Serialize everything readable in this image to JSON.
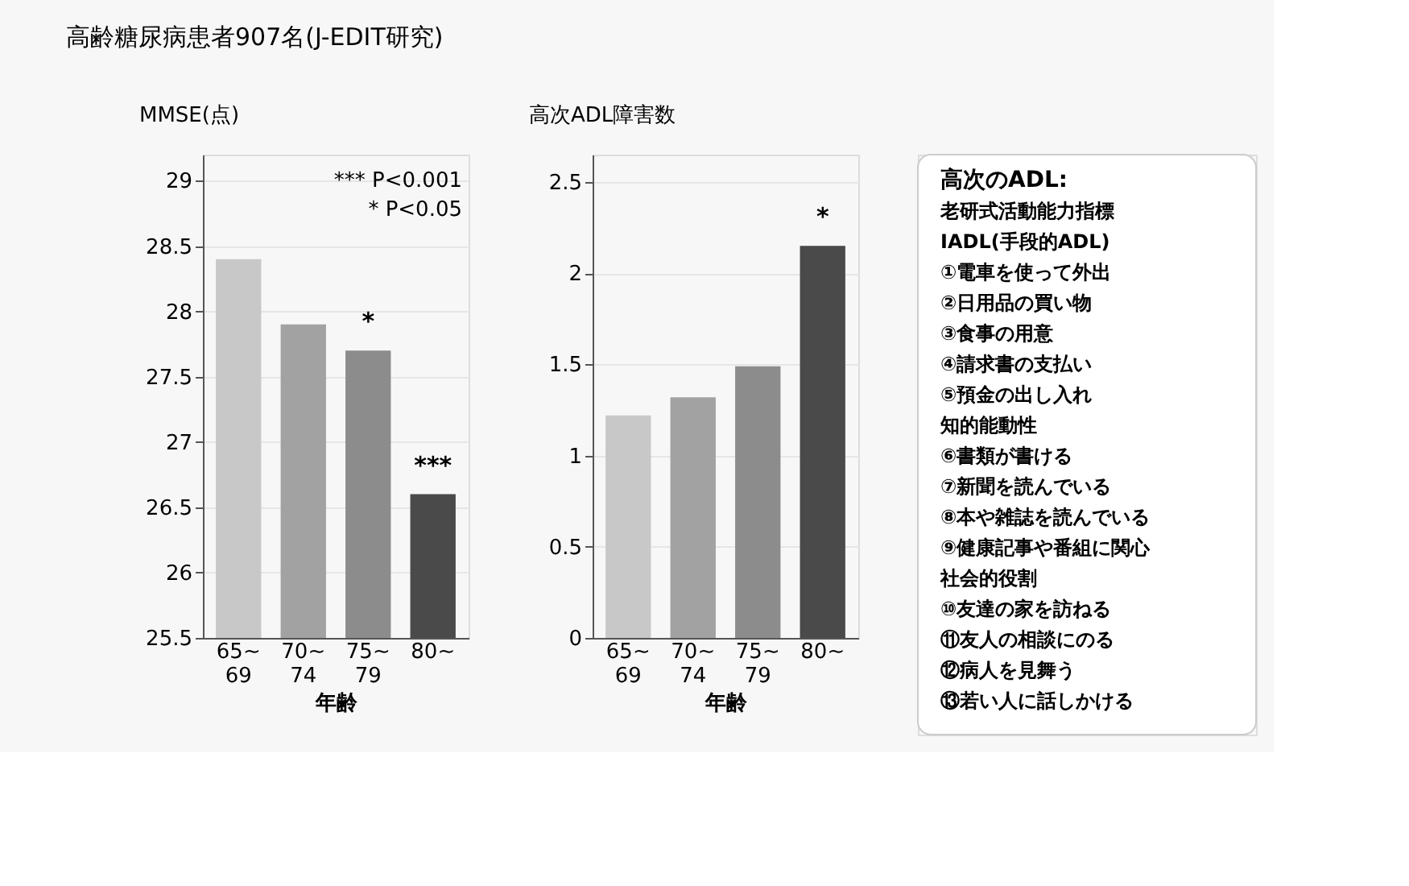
{
  "chart_data": [
    {
      "type": "bar",
      "title": "高齢糖尿病患者907名(J-EDIT研究)",
      "ylabel": "MMSE(点)",
      "xlabel": "年齢",
      "categories": [
        "65~\n69",
        "70~\n74",
        "75~\n79",
        "80~"
      ],
      "values": [
        28.4,
        27.9,
        27.7,
        26.6
      ],
      "colors": [
        "#c8c8c8",
        "#a2a2a2",
        "#8c8c8c",
        "#4a4a4a"
      ],
      "ylim": [
        25.5,
        29.2
      ],
      "yticks": [
        25.5,
        26,
        26.5,
        27,
        27.5,
        28,
        28.5,
        29
      ],
      "grid": "y",
      "annotations": [
        "*** P<0.001",
        "* P<0.05",
        {
          "text": "*",
          "x": "75~\n79",
          "y": 27.7
        },
        {
          "text": "***",
          "x": "80~",
          "y": 26.6
        }
      ]
    },
    {
      "type": "bar",
      "ylabel": "高次ADL障害数",
      "xlabel": "年齢",
      "categories": [
        "65~\n69",
        "70~\n74",
        "75~\n79",
        "80~"
      ],
      "values": [
        1.22,
        1.32,
        1.49,
        2.15
      ],
      "colors": [
        "#c8c8c8",
        "#a2a2a2",
        "#8c8c8c",
        "#4a4a4a"
      ],
      "ylim": [
        0,
        2.65
      ],
      "yticks": [
        0,
        0.5,
        1,
        1.5,
        2,
        2.5
      ],
      "grid": "y",
      "annotations": [
        {
          "text": "*",
          "x": "80~",
          "y": 2.15
        }
      ]
    },
    {
      "type": "other",
      "title": "高次のADL:",
      "subtitle": "老研式活動能力指標",
      "annotations": [
        "IADL(手段的ADL)",
        "①電車を使って外出",
        "②日用品の買い物",
        "③食事の用意",
        "④請求書の支払い",
        "⑤預金の出し入れ",
        "知的能動性",
        "⑥書類が書ける",
        "⑦新聞を読んでいる",
        "⑧本や雑誌を読んでいる",
        "⑨健康記事や番組に関心",
        "社会的役割",
        "⑩友達の家を訪ねる",
        "⑪友人の相談にのる",
        "⑫病人を見舞う",
        "⑬若い人に話しかける"
      ]
    }
  ]
}
